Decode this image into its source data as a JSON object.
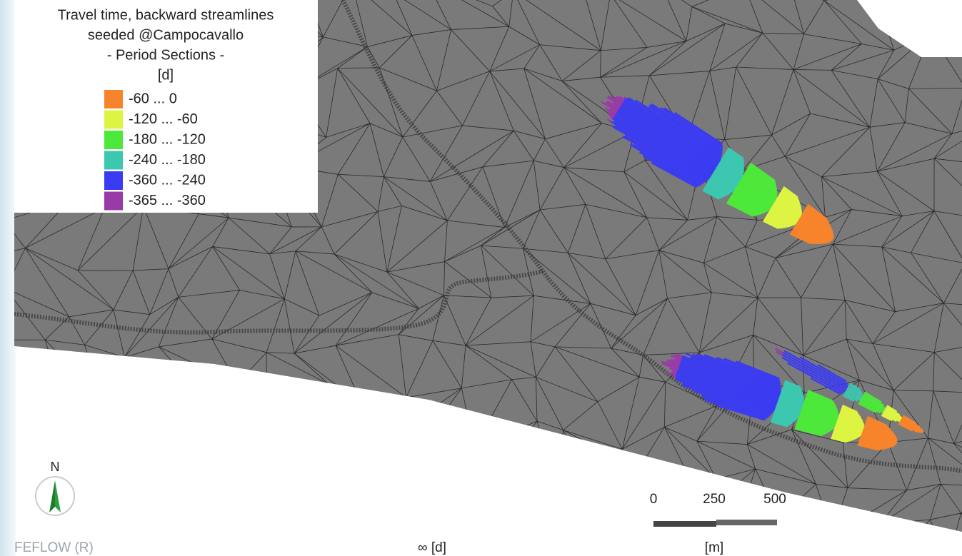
{
  "legend": {
    "title": [
      "Travel time, backward streamlines",
      "seeded @Campocavallo",
      "- Period Sections -",
      "[d]"
    ],
    "items": [
      {
        "label": "-60 ... 0",
        "color": "#f7842b"
      },
      {
        "label": "-120 ... -60",
        "color": "#ddf542"
      },
      {
        "label": "-180 ... -120",
        "color": "#4de83a"
      },
      {
        "label": "-240 ... -180",
        "color": "#3cc7b0"
      },
      {
        "label": "-360 ... -240",
        "color": "#3b3bf2"
      },
      {
        "label": "-365 ... -360",
        "color": "#9a3aa8"
      }
    ]
  },
  "north": {
    "label": "N"
  },
  "scale_bar": {
    "ticks": [
      "0",
      "250",
      "500"
    ],
    "unit": "[m]"
  },
  "footer": {
    "software": "FEFLOW (R)",
    "time_unit": "∞ [d]"
  }
}
